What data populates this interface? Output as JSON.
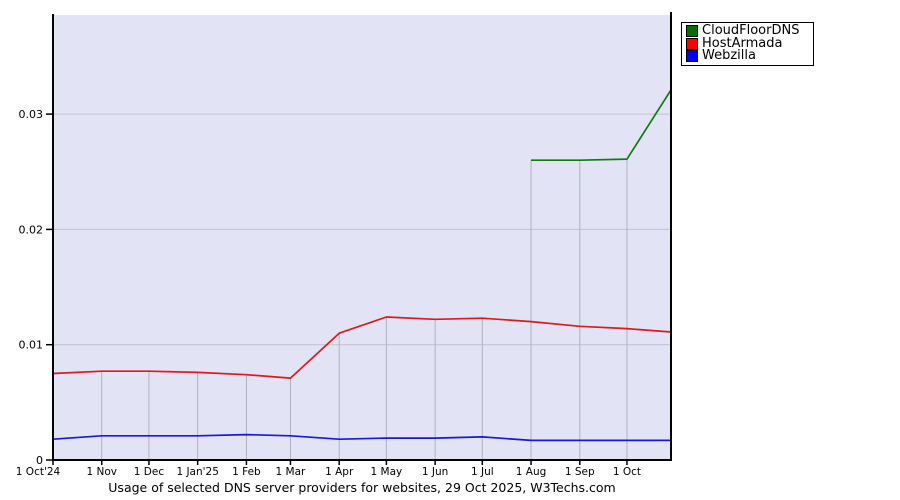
{
  "title": "Usage of selected DNS server providers for websites, 29 Oct 2025, W3Techs.com",
  "legend": {
    "items": [
      {
        "label": "CloudFloorDNS",
        "color": "#007000"
      },
      {
        "label": "HostArmada",
        "color": "#ff0000"
      },
      {
        "label": "Webzilla",
        "color": "#0000ff"
      }
    ]
  },
  "colors": {
    "page_bg": "#ffffff",
    "plot_bg": "#e3e3f6",
    "h_grid": "#c2c2cc",
    "v_grid": "#b0b0bd",
    "axis": "#000000"
  },
  "chart_data": {
    "type": "line",
    "x_axis_note": "days since 1 Oct 2024, data ends 29 Oct 2025",
    "x_max_day": 393,
    "x_tick_days": [
      0,
      31,
      61,
      92,
      123,
      151,
      182,
      212,
      243,
      273,
      304,
      335,
      365
    ],
    "x_tick_labels": [
      "1 Oct'24",
      "1 Nov",
      "1 Dec",
      "1 Jan'25",
      "1 Feb",
      "1 Mar",
      "1 Apr",
      "1 May",
      "1 Jun",
      "1 Jul",
      "1 Aug",
      "1 Sep",
      "1 Oct"
    ],
    "y_ticks": [
      0,
      0.01,
      0.02,
      0.03
    ],
    "y_tick_labels": [
      "0",
      "0.01",
      "0.02",
      "0.03"
    ],
    "ylim": [
      0,
      0.0386
    ],
    "grid": {
      "horizontal": "full-width",
      "vertical": "from x-axis up to topmost series"
    },
    "legend_position": "top-right outside plot",
    "series": [
      {
        "name": "Webzilla",
        "line_color": "#1818d8",
        "x_days": [
          0,
          31,
          61,
          92,
          123,
          151,
          182,
          212,
          243,
          273,
          304,
          335,
          365,
          393
        ],
        "values": [
          0.0018,
          0.0021,
          0.0021,
          0.0021,
          0.0022,
          0.0021,
          0.0018,
          0.0019,
          0.0019,
          0.002,
          0.0017,
          0.0017,
          0.0017,
          0.0017
        ]
      },
      {
        "name": "HostArmada",
        "line_color": "#e01818",
        "x_days": [
          0,
          31,
          61,
          92,
          123,
          151,
          182,
          212,
          243,
          273,
          304,
          335,
          365,
          393
        ],
        "values": [
          0.0075,
          0.0077,
          0.0077,
          0.0076,
          0.0074,
          0.0071,
          0.011,
          0.0124,
          0.0122,
          0.0123,
          0.012,
          0.0116,
          0.0114,
          0.0111
        ]
      },
      {
        "name": "CloudFloorDNS",
        "line_color": "#117a11",
        "x_days": [
          304,
          335,
          365,
          393
        ],
        "values": [
          0.026,
          0.026,
          0.0261,
          0.0321
        ]
      }
    ]
  }
}
